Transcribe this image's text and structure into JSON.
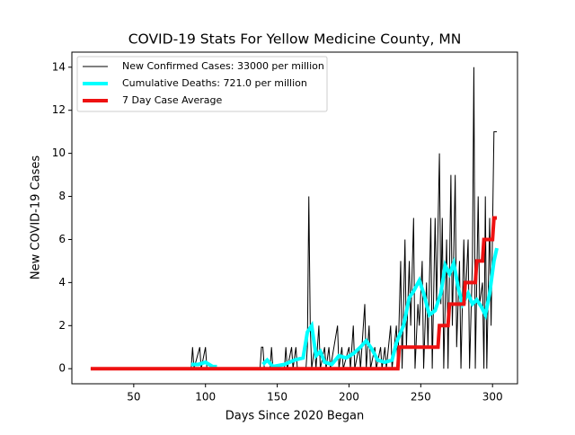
{
  "chart_data": {
    "type": "line",
    "title": "COVID-19 Stats For Yellow Medicine County, MN",
    "xlabel": "Days Since 2020 Began",
    "ylabel": "New COVID-19 Cases",
    "xlim": [
      6.9,
      317.4
    ],
    "ylim": [
      -0.7,
      14.7
    ],
    "xticks": [
      50,
      100,
      150,
      200,
      250,
      300
    ],
    "yticks": [
      0,
      2,
      4,
      6,
      8,
      10,
      12,
      14
    ],
    "grid": false,
    "legend": "upper left",
    "series": [
      {
        "name": "New Confirmed Cases: 33000 per million",
        "color": "#000000",
        "linewidth": 1,
        "x": [
          20,
          90,
          91,
          92,
          96,
          97,
          100,
          101,
          138,
          139,
          140,
          141,
          145,
          146,
          147,
          155,
          156,
          157,
          160,
          161,
          163,
          164,
          170,
          171,
          172,
          173,
          174,
          176,
          177,
          179,
          180,
          183,
          184,
          186,
          187,
          192,
          193,
          195,
          196,
          200,
          201,
          203,
          204,
          207,
          208,
          211,
          212,
          214,
          215,
          218,
          219,
          222,
          223,
          225,
          226,
          229,
          230,
          233,
          234,
          236,
          237,
          239,
          240,
          242,
          243,
          245,
          246,
          248,
          249,
          251,
          252,
          254,
          255,
          257,
          258,
          260,
          261,
          263,
          264,
          265,
          266,
          268,
          269,
          271,
          272,
          274,
          275,
          277,
          278,
          280,
          281,
          283,
          284,
          286,
          287,
          288,
          290,
          291,
          293,
          294,
          295,
          296,
          298,
          299,
          301,
          302,
          303
        ],
        "values": [
          0,
          0,
          1,
          0,
          1,
          0,
          1,
          0,
          0,
          1,
          1,
          0,
          0,
          1,
          0,
          0,
          1,
          0,
          1,
          0,
          1,
          0,
          0,
          1,
          8,
          2,
          0,
          1,
          0,
          2,
          0,
          1,
          0,
          1,
          0,
          2,
          0,
          1,
          0,
          1,
          0,
          2,
          0,
          1,
          0,
          3,
          0,
          2,
          0,
          1,
          0,
          1,
          0,
          1,
          0,
          2,
          0,
          2,
          0,
          5,
          0,
          6,
          1,
          5,
          2,
          7,
          0,
          3,
          2,
          5,
          0,
          4,
          1,
          7,
          0,
          7,
          3,
          10,
          3,
          7,
          0,
          6,
          0,
          9,
          2,
          9,
          1,
          5,
          0,
          6,
          3,
          6,
          0,
          5,
          14,
          0,
          8,
          3,
          4,
          0,
          8,
          0,
          7,
          2,
          11,
          11,
          11
        ]
      },
      {
        "name": "Cumulative Deaths: 721.0 per million",
        "color": "#00ffff",
        "linewidth": 4,
        "x": [
          90,
          95,
          100,
          105,
          108,
          null,
          140,
          143,
          147,
          155,
          162,
          168,
          171,
          174,
          177,
          180,
          183,
          188,
          193,
          198,
          203,
          208,
          212,
          216,
          220,
          225,
          230,
          233,
          238,
          242,
          245,
          249,
          252,
          256,
          260,
          264,
          267,
          270,
          273,
          276,
          279,
          283,
          286,
          289,
          292,
          295,
          298,
          301,
          303
        ],
        "values": [
          0.2,
          0.2,
          0.3,
          0.1,
          0.1,
          null,
          0.2,
          0.4,
          0.1,
          0.2,
          0.4,
          0.5,
          1.7,
          2.0,
          0.6,
          0.8,
          0.3,
          0.2,
          0.6,
          0.5,
          0.7,
          1.0,
          1.3,
          0.9,
          0.4,
          0.3,
          0.4,
          1.2,
          2.0,
          3.3,
          3.6,
          4.1,
          3.5,
          2.5,
          2.7,
          3.5,
          4.8,
          4.4,
          4.9,
          3.8,
          3.0,
          3.5,
          3.0,
          3.2,
          2.9,
          2.5,
          3.5,
          5.0,
          5.6
        ]
      },
      {
        "name": "7 Day Case Average",
        "color": "#ee1111",
        "linewidth": 4,
        "x": [
          20,
          234,
          235,
          262,
          263,
          269,
          270,
          280,
          281,
          288,
          289,
          293,
          294,
          300,
          301,
          303
        ],
        "values": [
          0,
          0,
          1,
          1,
          2,
          2,
          3,
          3,
          4,
          4,
          5,
          5,
          6,
          6,
          7,
          7
        ]
      }
    ]
  }
}
